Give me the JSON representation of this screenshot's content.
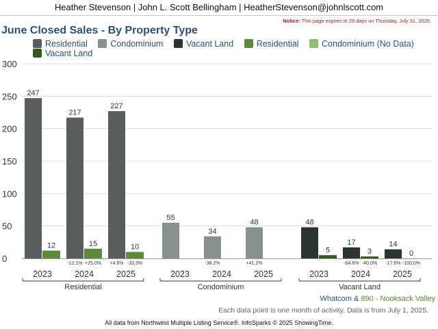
{
  "header": "Heather Stevenson | John L. Scott Bellingham | HeatherStevenson@johnlscott.com",
  "notice": {
    "label": "Notice:",
    "text": "This page expires in 29 days on Thursday, July 31, 2025."
  },
  "legend": [
    {
      "label": "Residential",
      "color": "#585e5e"
    },
    {
      "label": "Condominium",
      "color": "#889090"
    },
    {
      "label": "Vacant Land",
      "color": "#2b3530"
    },
    {
      "label": "Residential",
      "color": "#5d8a3a"
    },
    {
      "label": "Condominium (No Data)",
      "color": "#8fbf70"
    },
    {
      "label": "Vacant Land",
      "color": "#365a1e"
    }
  ],
  "footer": {
    "location_a": "Whatcom & ",
    "location_b": "890 - Nooksack Valley",
    "data_note": "Each data point is one month of activity. Data is from July 1, 2025.",
    "source": "All data from Northwest Multiple Listing Service®. InfoSparks © 2025 ShowingTime."
  },
  "chart_data": {
    "type": "bar",
    "title": "June Closed Sales - By Property Type",
    "ylim": [
      0,
      300
    ],
    "yticks": [
      0,
      50,
      100,
      150,
      200,
      250,
      300
    ],
    "grid": true,
    "groups": [
      {
        "name": "Residential",
        "years": [
          "2023",
          "2024",
          "2025"
        ],
        "series": [
          {
            "name": "Residential",
            "area": "Whatcom",
            "color": "#585e5e",
            "values": [
              247,
              217,
              227
            ]
          },
          {
            "name": "Residential",
            "area": "890 - Nooksack Valley",
            "color": "#5d8a3a",
            "values": [
              12,
              15,
              10
            ]
          }
        ],
        "changes": [
          [
            "",
            ""
          ],
          [
            "-12.1%",
            "+25.0%"
          ],
          [
            "+4.6%",
            "-33.3%"
          ]
        ]
      },
      {
        "name": "Condominium",
        "years": [
          "2023",
          "2024",
          "2025"
        ],
        "series": [
          {
            "name": "Condominium",
            "area": "Whatcom",
            "color": "#889090",
            "values": [
              55,
              34,
              48
            ]
          },
          {
            "name": "Condominium (No Data)",
            "area": "890 - Nooksack Valley",
            "color": "#8fbf70",
            "values": [
              null,
              null,
              null
            ]
          }
        ],
        "changes": [
          [
            "",
            ""
          ],
          [
            "-38.2%",
            ""
          ],
          [
            "+41.2%",
            ""
          ]
        ]
      },
      {
        "name": "Vacant Land",
        "years": [
          "2023",
          "2024",
          "2025"
        ],
        "series": [
          {
            "name": "Vacant Land",
            "area": "Whatcom",
            "color": "#2b3530",
            "values": [
              48,
              17,
              14
            ]
          },
          {
            "name": "Vacant Land",
            "area": "890 - Nooksack Valley",
            "color": "#365a1e",
            "values": [
              5,
              3,
              0
            ]
          }
        ],
        "changes": [
          [
            "",
            ""
          ],
          [
            "-64.6%",
            "-40.0%"
          ],
          [
            "-17.6%",
            "-100.0%"
          ]
        ]
      }
    ]
  }
}
